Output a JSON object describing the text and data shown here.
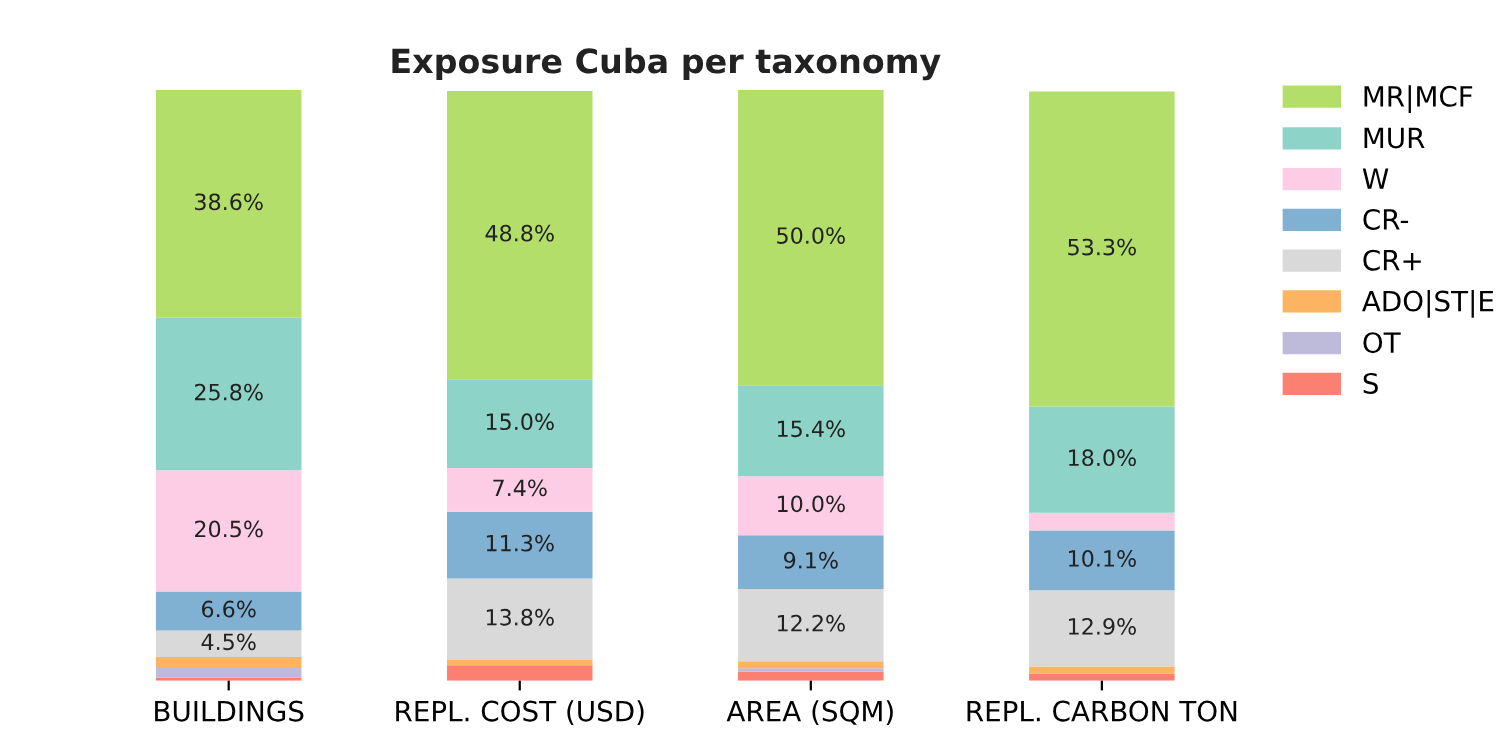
{
  "chart_data": {
    "type": "bar",
    "title": "Exposure Cuba per taxonomy",
    "stacked": true,
    "legend": "top right",
    "grid": false,
    "tick_labels": "x",
    "categories": [
      "BUILDINGS",
      "REPL. COST (USD)",
      "AREA (SQM)",
      "REPL. CARBON TON"
    ],
    "series": [
      {
        "name": "S",
        "color": "#fb8072",
        "values": [
          0.5,
          2.6,
          1.5,
          1.2
        ],
        "value_labels": [
          null,
          null,
          null,
          null
        ]
      },
      {
        "name": "OT",
        "color": "#bebada",
        "values": [
          1.8,
          null,
          0.6,
          null
        ],
        "value_labels": [
          null,
          null,
          null,
          null
        ]
      },
      {
        "name": "ADO|ST|E",
        "color": "#fdb462",
        "values": [
          1.7,
          0.9,
          1.2,
          1.2
        ],
        "value_labels": [
          null,
          null,
          null,
          null
        ]
      },
      {
        "name": "CR+",
        "color": "#d9d9d9",
        "values": [
          4.5,
          13.8,
          12.2,
          12.9
        ],
        "value_labels": [
          "4.5%",
          "13.8%",
          "12.2%",
          "12.9%"
        ]
      },
      {
        "name": "CR-",
        "color": "#80b1d3",
        "values": [
          6.6,
          11.3,
          9.1,
          10.1
        ],
        "value_labels": [
          "6.6%",
          "11.3%",
          "9.1%",
          "10.1%"
        ]
      },
      {
        "name": "W",
        "color": "#fccde5",
        "values": [
          20.5,
          7.4,
          10.0,
          3.0
        ],
        "value_labels": [
          "20.5%",
          "7.4%",
          "10.0%",
          null
        ]
      },
      {
        "name": "MUR",
        "color": "#8dd3c7",
        "values": [
          25.8,
          15.0,
          15.4,
          18.0
        ],
        "value_labels": [
          "25.8%",
          "15.0%",
          "15.4%",
          "18.0%"
        ]
      },
      {
        "name": "MR|MCF",
        "color": "#b3de69",
        "values": [
          38.6,
          48.8,
          50.0,
          53.3
        ],
        "value_labels": [
          "38.6%",
          "48.8%",
          "50.0%",
          "53.3%"
        ]
      }
    ]
  }
}
